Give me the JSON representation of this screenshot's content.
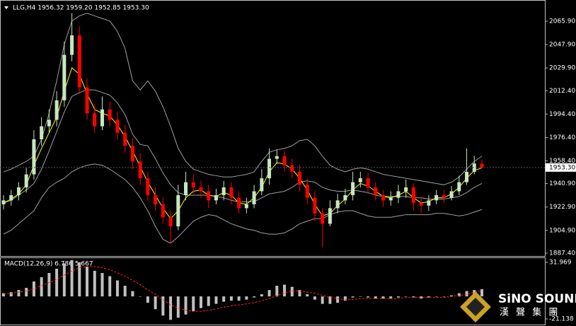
{
  "logo": {
    "name": "SiNO SOUND",
    "sub": "漢 聲 集 團"
  },
  "chart_data": [
    {
      "type": "candlestick",
      "title": "LLG,H4  1956.32 1959.20 1952.85 1953.30",
      "up_color": "#c8e6c0",
      "down_color": "#ff0000",
      "open": [
        1925,
        1928,
        1932,
        1938,
        1948,
        1975,
        1985,
        1990,
        2005,
        2040,
        2055,
        2015,
        1995,
        1985,
        1998,
        1990,
        1980,
        1970,
        1958,
        1945,
        1932,
        1925,
        1915,
        1908,
        1932,
        1942,
        1938,
        1935,
        1928,
        1932,
        1938,
        1930,
        1922,
        1925,
        1935,
        1945,
        1960,
        1962,
        1955,
        1950,
        1940,
        1930,
        1918,
        1910,
        1922,
        1928,
        1932,
        1942,
        1945,
        1938,
        1932,
        1928,
        1930,
        1935,
        1938,
        1926,
        1924,
        1928,
        1932,
        1930,
        1935,
        1942,
        1950,
        1956.32
      ],
      "high": [
        1932,
        1936,
        1942,
        1953,
        1982,
        1992,
        1998,
        2012,
        2050,
        2072,
        2062,
        2022,
        2002,
        2008,
        2004,
        1996,
        1986,
        1976,
        1964,
        1950,
        1938,
        1930,
        1920,
        1940,
        1950,
        1948,
        1943,
        1940,
        1937,
        1943,
        1942,
        1935,
        1930,
        1940,
        1952,
        1968,
        1967,
        1966,
        1960,
        1955,
        1945,
        1935,
        1922,
        1928,
        1933,
        1937,
        1950,
        1950,
        1949,
        1942,
        1936,
        1935,
        1940,
        1944,
        1941,
        1930,
        1932,
        1936,
        1936,
        1939,
        1947,
        1968,
        1962,
        1959.2
      ],
      "low": [
        1921,
        1924,
        1928,
        1934,
        1944,
        1970,
        1980,
        1985,
        2000,
        2035,
        2010,
        1990,
        1980,
        1982,
        1985,
        1975,
        1965,
        1952,
        1940,
        1928,
        1920,
        1910,
        1895,
        1905,
        1928,
        1933,
        1930,
        1922,
        1925,
        1928,
        1925,
        1918,
        1918,
        1922,
        1932,
        1940,
        1956,
        1950,
        1945,
        1935,
        1925,
        1912,
        1892,
        1908,
        1918,
        1925,
        1928,
        1938,
        1933,
        1928,
        1923,
        1924,
        1926,
        1930,
        1920,
        1918,
        1920,
        1925,
        1926,
        1928,
        1932,
        1940,
        1948,
        1952.85
      ],
      "close": [
        1928,
        1932,
        1938,
        1948,
        1975,
        1985,
        1990,
        2005,
        2040,
        2055,
        2015,
        1995,
        1985,
        1998,
        1990,
        1980,
        1970,
        1958,
        1945,
        1932,
        1925,
        1915,
        1908,
        1932,
        1942,
        1938,
        1935,
        1928,
        1932,
        1938,
        1930,
        1922,
        1925,
        1935,
        1945,
        1960,
        1962,
        1955,
        1950,
        1940,
        1930,
        1918,
        1910,
        1922,
        1928,
        1932,
        1942,
        1945,
        1938,
        1932,
        1928,
        1930,
        1935,
        1938,
        1926,
        1924,
        1928,
        1932,
        1930,
        1935,
        1942,
        1950,
        1956.32,
        1953.3
      ],
      "lines": [
        {
          "color": "#a0a0a0",
          "values": [
            1950,
            1952,
            1955,
            1958,
            1962,
            1975,
            1995,
            2020,
            2048,
            2066,
            2070,
            2072,
            2070,
            2068,
            2066,
            2058,
            2045,
            2020,
            2013,
            2020,
            2012,
            2000,
            1985,
            1968,
            1958,
            1952,
            1950,
            1948,
            1947,
            1946,
            1946,
            1947,
            1948,
            1950,
            1958,
            1965,
            1967,
            1968,
            1970,
            1974,
            1975,
            1970,
            1962,
            1955,
            1952,
            1950,
            1952,
            1953,
            1952,
            1950,
            1948,
            1947,
            1946,
            1945,
            1944,
            1943,
            1942,
            1941,
            1940,
            1942,
            1946,
            1952,
            1958,
            1962
          ]
        },
        {
          "color": "#a0a0a0",
          "values": [
            1926,
            1928,
            1932,
            1936,
            1941,
            1952,
            1966,
            1981,
            1996,
            2008,
            2011,
            2013,
            2013,
            2011,
            2009,
            2003,
            1994,
            1979,
            1971,
            1970,
            1960,
            1949,
            1940,
            1934,
            1932,
            1932,
            1932,
            1932,
            1931,
            1930,
            1928,
            1927,
            1927,
            1927,
            1930,
            1933,
            1934,
            1935,
            1938,
            1942,
            1943,
            1942,
            1938,
            1936,
            1935,
            1935,
            1936,
            1935,
            1934,
            1932,
            1931,
            1931,
            1931,
            1931,
            1930,
            1930,
            1929,
            1929,
            1929,
            1930,
            1931,
            1934,
            1938,
            1941
          ]
        },
        {
          "color": "#a0a0a0",
          "values": [
            1902,
            1905,
            1910,
            1915,
            1920,
            1930,
            1938,
            1942,
            1945,
            1950,
            1953,
            1955,
            1956,
            1955,
            1952,
            1948,
            1944,
            1938,
            1930,
            1920,
            1908,
            1898,
            1895,
            1900,
            1906,
            1912,
            1915,
            1917,
            1916,
            1913,
            1910,
            1908,
            1906,
            1905,
            1903,
            1902,
            1902,
            1903,
            1906,
            1910,
            1912,
            1914,
            1914,
            1917,
            1919,
            1920,
            1920,
            1918,
            1916,
            1915,
            1915,
            1915,
            1916,
            1917,
            1917,
            1917,
            1917,
            1918,
            1918,
            1917,
            1916,
            1917,
            1919,
            1921
          ]
        },
        {
          "color": "#ffff00",
          "values": [
            1926,
            1929,
            1933,
            1940,
            1955,
            1968,
            1980,
            1992,
            2012,
            2030,
            2025,
            2010,
            1998,
            1995,
            1993,
            1986,
            1977,
            1966,
            1954,
            1942,
            1932,
            1922,
            1914,
            1920,
            1930,
            1935,
            1936,
            1932,
            1931,
            1934,
            1932,
            1926,
            1925,
            1930,
            1938,
            1950,
            1957,
            1956,
            1952,
            1945,
            1936,
            1925,
            1916,
            1918,
            1924,
            1929,
            1936,
            1941,
            1939,
            1935,
            1931,
            1930,
            1932,
            1935,
            1930,
            1926,
            1927,
            1930,
            1930,
            1933,
            1938,
            1945,
            1951,
            1953
          ]
        }
      ],
      "ylim": [
        1885.2,
        2082.2
      ],
      "yticks": [
        {
          "value": 2065.9,
          "label": "2065.90"
        },
        {
          "value": 2047.9,
          "label": "2047.90"
        },
        {
          "value": 2029.9,
          "label": "2029.90"
        },
        {
          "value": 2012.4,
          "label": "2012.40"
        },
        {
          "value": 1994.4,
          "label": "1994.40"
        },
        {
          "value": 1976.4,
          "label": "1976.40"
        },
        {
          "value": 1958.4,
          "label": "1958.40"
        },
        {
          "value": 1940.9,
          "label": "1940.90"
        },
        {
          "value": 1922.9,
          "label": "1922.90"
        },
        {
          "value": 1904.9,
          "label": "1904.90"
        },
        {
          "value": 1887.4,
          "label": "1887.40"
        }
      ],
      "current_price": {
        "value": 1953.3,
        "label": "1953.30"
      }
    },
    {
      "type": "macd",
      "title": "MACD(12,26,9) 6.786 5.667",
      "color": "#c0c0c0",
      "values": [
        3,
        4,
        6,
        8,
        14,
        18,
        22,
        26,
        31,
        34,
        32,
        28,
        24,
        22,
        19,
        15,
        10,
        5,
        0,
        -6,
        -12,
        -18,
        -22,
        -20,
        -17,
        -14,
        -11,
        -9,
        -7,
        -5,
        -4,
        -4,
        -3,
        -1,
        2,
        6,
        10,
        11,
        9,
        6,
        2,
        -3,
        -7,
        -7,
        -6,
        -4,
        -1,
        0,
        -1,
        -2,
        -2,
        -2,
        -1,
        0,
        -1,
        -2,
        -1,
        0,
        0,
        1,
        3,
        5,
        6,
        6.786
      ],
      "signal": {
        "color": "#ff2020",
        "values": [
          2,
          3,
          4,
          5,
          7,
          10,
          13,
          16,
          20,
          24,
          27,
          28,
          28,
          27,
          25,
          22,
          19,
          15,
          11,
          6,
          2,
          -3,
          -8,
          -11,
          -13,
          -14,
          -14,
          -13,
          -12,
          -10,
          -9,
          -8,
          -7,
          -6,
          -4,
          -2,
          1,
          3,
          5,
          5,
          4,
          3,
          1,
          -1,
          -2,
          -3,
          -3,
          -2,
          -2,
          -2,
          -2,
          -2,
          -2,
          -1,
          -1,
          -1,
          -1,
          -1,
          -1,
          0,
          1,
          2,
          4,
          5.667
        ]
      },
      "ylim": [
        -25.8,
        35.95
      ],
      "yticks": [
        31.969,
        -21.138
      ]
    }
  ]
}
